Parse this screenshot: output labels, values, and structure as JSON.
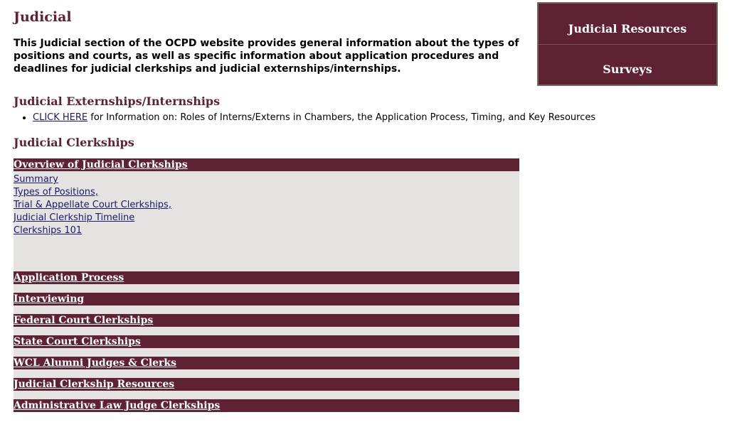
{
  "page": {
    "title": "Judicial",
    "intro": "This Judicial section of the OCPD website provides general information about the types of positions and courts, as well as specific information about application procedures and deadlines for judicial clerkships and judicial externships/internships."
  },
  "externships": {
    "heading": "Judicial Externships/Internships",
    "link_text": "CLICK HERE",
    "link_suffix": " for Information on: Roles of Interns/Externs in Chambers, the Application Process, Timing, and Key Resources"
  },
  "clerkships": {
    "heading": "Judicial Clerkships",
    "overview": {
      "header": "Overview of Judicial Clerkships",
      "links": [
        "Summary",
        "Types of Positions,",
        "Trial & Appellate Court Clerkships,",
        "Judicial Clerkship Timeline",
        "Clerkships 101"
      ]
    },
    "sections": [
      "Application Process",
      "Interviewing",
      "Federal Court Clerkships",
      "State Court Clerkships",
      "WCL Alumni Judges & Clerks",
      "Judicial Clerkship Resources",
      "Administrative Law Judge Clerkships"
    ]
  },
  "sidebar": {
    "items": [
      "Judicial Resources",
      "Surveys"
    ]
  },
  "colors": {
    "maroon": "#5e2232",
    "panel_gray": "#e5e3e1",
    "link_blue": "#1a1a66"
  }
}
